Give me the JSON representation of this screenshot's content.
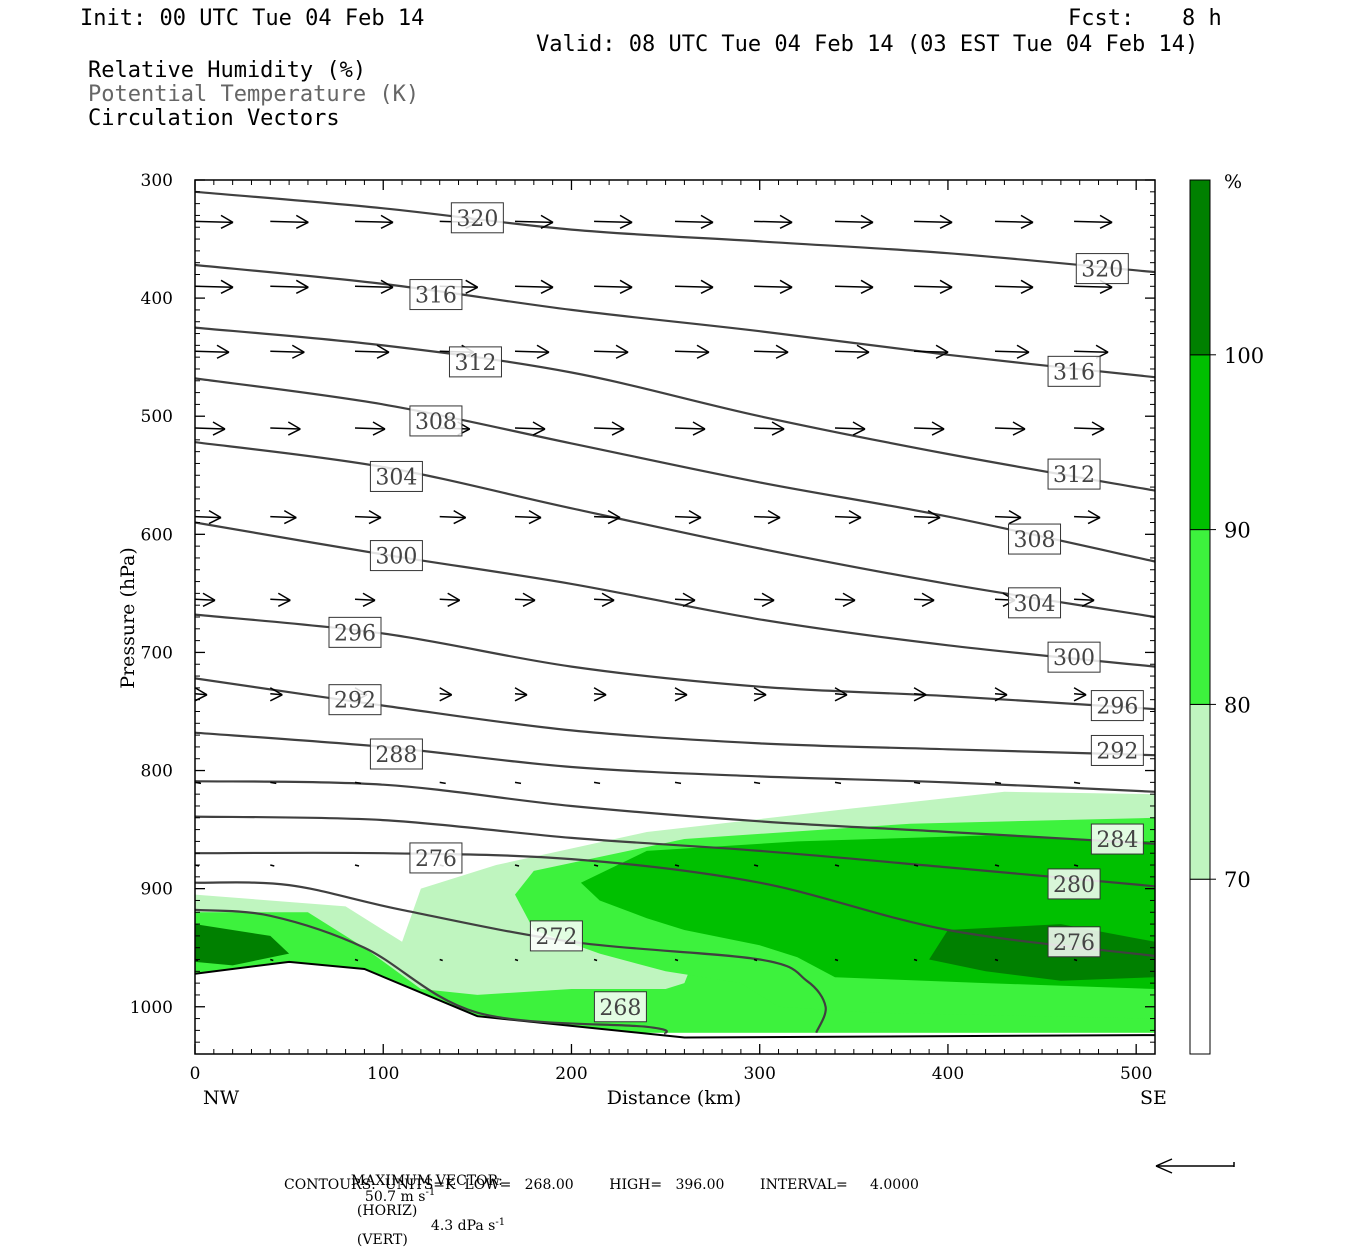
{
  "header": {
    "init": "Init: 00 UTC Tue 04 Feb 14",
    "fcst_label": "Fcst:",
    "fcst_value": "8 h",
    "valid": "Valid: 08 UTC Tue 04 Feb 14 (03 EST Tue 04 Feb 14)"
  },
  "fields": {
    "rh": "Relative Humidity (%)",
    "theta": "Potential Temperature (K)",
    "circ": "Circulation Vectors"
  },
  "footer": {
    "max_vector_label": "MAXIMUM VECTOR:",
    "max_horiz": "50.7 m s",
    "max_horiz_exp": "-1",
    "horiz_tag": "(HORIZ)",
    "max_vert": "4.3 dPa s",
    "max_vert_exp": "-1",
    "vert_tag": "(VERT)",
    "contours": "CONTOURS:  UNITS=K  LOW=   268.00        HIGH=   396.00        INTERVAL=     4.0000"
  },
  "colors": {
    "rh_70": "#bff5bf",
    "rh_80": "#3df23d",
    "rh_90": "#00c000",
    "rh_100": "#008000",
    "contour": "#404040"
  },
  "chart_data": {
    "type": "cross-section",
    "xlabel": "Distance (km)",
    "ylabel": "Pressure (hPa)",
    "xlim": [
      0,
      510
    ],
    "ylim": [
      1040,
      300
    ],
    "x_ticks": [
      0,
      100,
      200,
      300,
      400,
      500
    ],
    "y_ticks": [
      300,
      400,
      500,
      600,
      700,
      800,
      900,
      1000
    ],
    "left_end_label": "NW",
    "right_end_label": "SE",
    "colorbar": {
      "unit": "%",
      "levels": [
        70,
        80,
        90,
        100
      ],
      "labels": [
        "70",
        "80",
        "90",
        "100"
      ]
    },
    "theta_contours": [
      {
        "value": 320,
        "x": [
          0,
          100,
          200,
          300,
          400,
          510
        ],
        "p": [
          310,
          324,
          342,
          352,
          362,
          378
        ],
        "labels": [
          {
            "text": "320",
            "x": 150,
            "p": 332
          },
          {
            "text": "320",
            "x": 482,
            "p": 375
          }
        ]
      },
      {
        "value": 316,
        "x": [
          0,
          100,
          200,
          300,
          400,
          510
        ],
        "p": [
          372,
          388,
          410,
          428,
          448,
          467
        ],
        "labels": [
          {
            "text": "316",
            "x": 128,
            "p": 397
          },
          {
            "text": "316",
            "x": 467,
            "p": 462
          }
        ]
      },
      {
        "value": 312,
        "x": [
          0,
          100,
          200,
          300,
          400,
          510
        ],
        "p": [
          425,
          440,
          463,
          500,
          532,
          563
        ],
        "labels": [
          {
            "text": "312",
            "x": 149,
            "p": 454
          },
          {
            "text": "312",
            "x": 467,
            "p": 549
          }
        ]
      },
      {
        "value": 308,
        "x": [
          0,
          100,
          200,
          300,
          400,
          510
        ],
        "p": [
          468,
          490,
          523,
          556,
          585,
          623
        ],
        "labels": [
          {
            "text": "308",
            "x": 128,
            "p": 504
          },
          {
            "text": "308",
            "x": 446,
            "p": 604
          }
        ]
      },
      {
        "value": 304,
        "x": [
          0,
          100,
          200,
          300,
          400,
          510
        ],
        "p": [
          522,
          543,
          578,
          612,
          642,
          670
        ],
        "labels": [
          {
            "text": "304",
            "x": 107,
            "p": 551
          },
          {
            "text": "304",
            "x": 446,
            "p": 658
          }
        ]
      },
      {
        "value": 300,
        "x": [
          0,
          100,
          200,
          300,
          400,
          510
        ],
        "p": [
          590,
          617,
          642,
          672,
          694,
          712
        ],
        "labels": [
          {
            "text": "300",
            "x": 107,
            "p": 618
          },
          {
            "text": "300",
            "x": 467,
            "p": 704
          }
        ]
      },
      {
        "value": 296,
        "x": [
          0,
          100,
          200,
          300,
          400,
          510
        ],
        "p": [
          668,
          684,
          712,
          729,
          737,
          748
        ],
        "labels": [
          {
            "text": "296",
            "x": 85,
            "p": 683
          },
          {
            "text": "296",
            "x": 490,
            "p": 745
          }
        ]
      },
      {
        "value": 292,
        "x": [
          0,
          100,
          200,
          300,
          400,
          510
        ],
        "p": [
          722,
          745,
          766,
          777,
          782,
          787
        ],
        "labels": [
          {
            "text": "292",
            "x": 85,
            "p": 740
          },
          {
            "text": "292",
            "x": 490,
            "p": 783
          }
        ]
      },
      {
        "value": 288,
        "x": [
          0,
          100,
          200,
          300,
          400,
          510
        ],
        "p": [
          768,
          780,
          797,
          805,
          810,
          818
        ]
      },
      {
        "value": 284,
        "x": [
          0,
          100,
          200,
          300,
          400,
          510
        ],
        "p": [
          809,
          812,
          830,
          843,
          852,
          862
        ],
        "labels": [
          {
            "text": "284",
            "x": 490,
            "p": 858
          }
        ]
      },
      {
        "value": 280,
        "x": [
          0,
          100,
          200,
          300,
          400,
          510
        ],
        "p": [
          839,
          842,
          857,
          868,
          882,
          898
        ],
        "labels": [
          {
            "text": "280",
            "x": 467,
            "p": 896
          }
        ]
      },
      {
        "value": 276,
        "x": [
          0,
          100,
          200,
          300,
          400,
          510
        ],
        "p": [
          870,
          870,
          875,
          895,
          935,
          957
        ],
        "labels": [
          {
            "text": "288",
            "x": 107,
            "p": 786
          },
          {
            "text": "276",
            "x": 128,
            "p": 874
          },
          {
            "text": "276",
            "x": 467,
            "p": 945
          }
        ]
      },
      {
        "value": 272,
        "x": [
          0,
          50,
          110,
          200,
          300,
          325,
          335,
          330
        ],
        "p": [
          895,
          897,
          918,
          945,
          960,
          978,
          1000,
          1022
        ],
        "labels": [
          {
            "text": "272",
            "x": 192,
            "p": 940
          }
        ]
      },
      {
        "value": 268,
        "x": [
          0,
          40,
          90,
          150,
          240,
          250
        ],
        "p": [
          918,
          923,
          950,
          1005,
          1017,
          1023
        ],
        "labels": [
          {
            "text": "268",
            "x": 226,
            "p": 1000
          }
        ]
      }
    ],
    "rh_regions": [
      {
        "level": 70,
        "points": [
          [
            0,
            905
          ],
          [
            80,
            915
          ],
          [
            110,
            945
          ],
          [
            120,
            900
          ],
          [
            160,
            880
          ],
          [
            240,
            852
          ],
          [
            350,
            832
          ],
          [
            430,
            818
          ],
          [
            510,
            820
          ],
          [
            510,
            1022
          ],
          [
            0,
            1022
          ]
        ]
      },
      {
        "level": 80,
        "points": [
          [
            0,
            920
          ],
          [
            60,
            920
          ],
          [
            90,
            950
          ],
          [
            120,
            985
          ],
          [
            150,
            990
          ],
          [
            200,
            985
          ],
          [
            250,
            985
          ],
          [
            260,
            980
          ],
          [
            270,
            940
          ],
          [
            320,
            930
          ],
          [
            360,
            930
          ],
          [
            420,
            910
          ],
          [
            510,
            918
          ],
          [
            510,
            1022
          ],
          [
            0,
            1022
          ]
        ]
      },
      {
        "level": 80,
        "points": [
          [
            170,
            905
          ],
          [
            180,
            885
          ],
          [
            260,
            858
          ],
          [
            380,
            845
          ],
          [
            510,
            840
          ],
          [
            510,
            1010
          ],
          [
            360,
            1005
          ],
          [
            310,
            1000
          ],
          [
            290,
            980
          ],
          [
            250,
            970
          ],
          [
            215,
            955
          ],
          [
            180,
            935
          ]
        ]
      },
      {
        "level": 90,
        "points": [
          [
            205,
            895
          ],
          [
            240,
            868
          ],
          [
            320,
            860
          ],
          [
            420,
            855
          ],
          [
            510,
            860
          ],
          [
            510,
            985
          ],
          [
            420,
            980
          ],
          [
            340,
            975
          ],
          [
            320,
            958
          ],
          [
            300,
            948
          ],
          [
            260,
            935
          ],
          [
            240,
            925
          ],
          [
            215,
            910
          ]
        ]
      },
      {
        "level": 100,
        "points": [
          [
            0,
            930
          ],
          [
            40,
            940
          ],
          [
            50,
            955
          ],
          [
            20,
            965
          ],
          [
            0,
            962
          ]
        ]
      },
      {
        "level": 100,
        "points": [
          [
            400,
            935
          ],
          [
            460,
            930
          ],
          [
            510,
            945
          ],
          [
            510,
            975
          ],
          [
            460,
            978
          ],
          [
            420,
            970
          ],
          [
            390,
            960
          ]
        ]
      }
    ],
    "vector_rows": [
      {
        "p": 335,
        "xs": [
          0,
          40,
          85,
          130,
          170,
          212,
          255,
          297,
          340,
          382,
          425,
          467,
          510
        ],
        "len": 38
      },
      {
        "p": 390,
        "xs": [
          0,
          40,
          85,
          130,
          170,
          212,
          255,
          297,
          340,
          382,
          425,
          467,
          510
        ],
        "len": 38
      },
      {
        "p": 445,
        "xs": [
          0,
          40,
          85,
          130,
          170,
          212,
          255,
          297,
          340,
          382,
          425,
          467,
          510
        ],
        "len": 34
      },
      {
        "p": 510,
        "xs": [
          0,
          40,
          85,
          130,
          170,
          212,
          255,
          297,
          340,
          382,
          425,
          467,
          510
        ],
        "len": 30
      },
      {
        "p": 585,
        "xs": [
          0,
          40,
          85,
          130,
          170,
          212,
          255,
          297,
          340,
          382,
          425,
          467,
          510
        ],
        "len": 26
      },
      {
        "p": 655,
        "xs": [
          0,
          40,
          85,
          130,
          170,
          212,
          255,
          297,
          340,
          382,
          425,
          467,
          510
        ],
        "len": 20
      },
      {
        "p": 735,
        "xs": [
          0,
          40,
          85,
          130,
          170,
          212,
          255,
          297,
          340,
          382,
          425,
          467,
          510
        ],
        "len": 12
      },
      {
        "p": 810,
        "xs": [
          0,
          40,
          85,
          130,
          170,
          212,
          255,
          297,
          340,
          382,
          425,
          467,
          510
        ],
        "len": 6
      },
      {
        "p": 880,
        "xs": [
          0,
          40,
          85,
          130,
          170,
          212,
          255,
          297,
          340,
          382,
          425,
          467,
          510
        ],
        "len": 4
      },
      {
        "p": 960,
        "xs": [
          0,
          40,
          85,
          130,
          170,
          212,
          255,
          297,
          340,
          382,
          425,
          467,
          510
        ],
        "len": 3
      }
    ]
  }
}
